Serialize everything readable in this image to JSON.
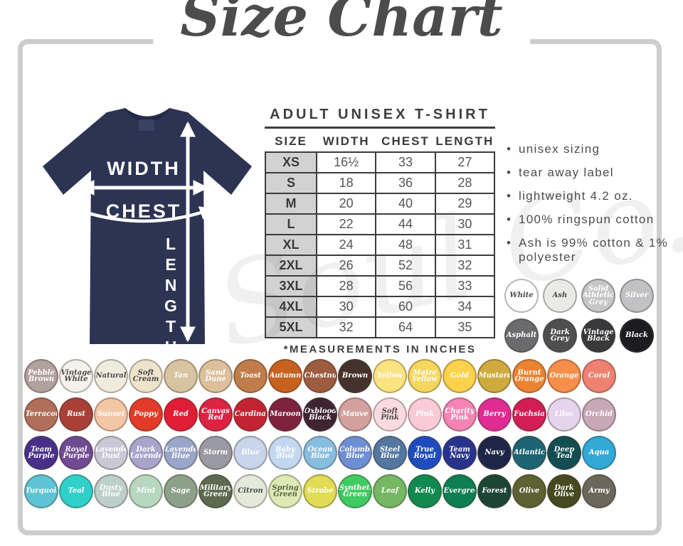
{
  "title": "Size Chart",
  "watermark": "Soul Co.",
  "shirt": {
    "color": "#2d3453",
    "labels": {
      "width": "WIDTH",
      "chest": "CHEST",
      "length": "LENGTH"
    }
  },
  "size_chart": {
    "heading": "ADULT UNISEX T-SHIRT",
    "columns": [
      "SIZE",
      "WIDTH",
      "CHEST",
      "LENGTH"
    ],
    "rows": [
      {
        "size": "XS",
        "width": "16½",
        "chest": "33",
        "length": "27"
      },
      {
        "size": "S",
        "width": "18",
        "chest": "36",
        "length": "28"
      },
      {
        "size": "M",
        "width": "20",
        "chest": "40",
        "length": "29"
      },
      {
        "size": "L",
        "width": "22",
        "chest": "44",
        "length": "30"
      },
      {
        "size": "XL",
        "width": "24",
        "chest": "48",
        "length": "31"
      },
      {
        "size": "2XL",
        "width": "26",
        "chest": "52",
        "length": "32"
      },
      {
        "size": "3XL",
        "width": "28",
        "chest": "56",
        "length": "33"
      },
      {
        "size": "4XL",
        "width": "30",
        "chest": "60",
        "length": "34"
      },
      {
        "size": "5XL",
        "width": "32",
        "chest": "64",
        "length": "35"
      }
    ],
    "footnote": "*MEASUREMENTS IN INCHES"
  },
  "features": [
    "unisex sizing",
    "tear away label",
    "lightweight 4.2 oz.",
    "100% ringspun cotton",
    "Ash is 99% cotton & 1% polyester"
  ],
  "neutral_swatches": [
    {
      "label": "White",
      "color": "#ffffff",
      "text": "#4a4a4a"
    },
    {
      "label": "Ash",
      "color": "#eaeae8",
      "text": "#4a4a4a"
    },
    {
      "label": "Solid Athletic Grey",
      "color": "#c6c6c6",
      "text": "#ffffff"
    },
    {
      "label": "Silver",
      "color": "#c2c2c4",
      "text": "#ffffff"
    },
    {
      "label": "Asphalt",
      "color": "#6b6b6d",
      "text": "#ffffff"
    },
    {
      "label": "Dark Grey",
      "color": "#4f4f51",
      "text": "#ffffff"
    },
    {
      "label": "Vintage Black",
      "color": "#39393b",
      "text": "#ffffff"
    },
    {
      "label": "Black",
      "color": "#1c1c20",
      "text": "#ffffff"
    }
  ],
  "swatch_rows": [
    [
      {
        "label": "Pebble Brown",
        "color": "#b2a19c",
        "text": "#ffffff"
      },
      {
        "label": "Vintage White",
        "color": "#f4f2ec",
        "text": "#4a4a4a"
      },
      {
        "label": "Natural",
        "color": "#f0ebdd",
        "text": "#4a4a4a"
      },
      {
        "label": "Soft Cream",
        "color": "#eee3cb",
        "text": "#4a4a4a"
      },
      {
        "label": "Tan",
        "color": "#d9c4a2",
        "text": "#ffffff"
      },
      {
        "label": "Sand Dune",
        "color": "#dcc09b",
        "text": "#ffffff"
      },
      {
        "label": "Toast",
        "color": "#c07c4a",
        "text": "#ffffff"
      },
      {
        "label": "Autumn",
        "color": "#c8601f",
        "text": "#ffffff"
      },
      {
        "label": "Chestnut",
        "color": "#9d5b40",
        "text": "#ffffff"
      },
      {
        "label": "Brown",
        "color": "#45322d",
        "text": "#ffffff"
      },
      {
        "label": "Yellow",
        "color": "#fbe381",
        "text": "#ffffff"
      },
      {
        "label": "Maize Yellow",
        "color": "#f6d75e",
        "text": "#ffffff"
      },
      {
        "label": "Gold",
        "color": "#fcd14b",
        "text": "#ffffff"
      },
      {
        "label": "Mustard",
        "color": "#cfab3d",
        "text": "#ffffff"
      },
      {
        "label": "Burnt Orange",
        "color": "#ed8330",
        "text": "#ffffff"
      },
      {
        "label": "Orange",
        "color": "#f78e49",
        "text": "#ffffff"
      },
      {
        "label": "Coral",
        "color": "#ee8172",
        "text": "#ffffff"
      }
    ],
    [
      {
        "label": "Terracotta",
        "color": "#b06f5a",
        "text": "#ffffff"
      },
      {
        "label": "Rust",
        "color": "#a84038",
        "text": "#ffffff"
      },
      {
        "label": "Sunset",
        "color": "#f3c6a5",
        "text": "#ffffff"
      },
      {
        "label": "Poppy",
        "color": "#e23b28",
        "text": "#ffffff"
      },
      {
        "label": "Red",
        "color": "#e01d35",
        "text": "#ffffff"
      },
      {
        "label": "Canvas Red",
        "color": "#dc2342",
        "text": "#ffffff"
      },
      {
        "label": "Cardinal",
        "color": "#c22333",
        "text": "#ffffff"
      },
      {
        "label": "Maroon",
        "color": "#7e2240",
        "text": "#ffffff"
      },
      {
        "label": "Oxblood Black",
        "color": "#3e2531",
        "text": "#ffffff"
      },
      {
        "label": "Mauve",
        "color": "#d4a09e",
        "text": "#ffffff"
      },
      {
        "label": "Soft Pink",
        "color": "#fbdbe1",
        "text": "#4a4a4a"
      },
      {
        "label": "Pink",
        "color": "#f9cbd8",
        "text": "#ffffff"
      },
      {
        "label": "Charity Pink",
        "color": "#f584b4",
        "text": "#ffffff"
      },
      {
        "label": "Berry",
        "color": "#e02c92",
        "text": "#ffffff"
      },
      {
        "label": "Fuchsia",
        "color": "#d31d55",
        "text": "#ffffff"
      },
      {
        "label": "Lilac",
        "color": "#e5d4ec",
        "text": "#ffffff"
      },
      {
        "label": "Orchid",
        "color": "#c8a8b7",
        "text": "#ffffff"
      }
    ],
    [
      {
        "label": "Team Purple",
        "color": "#483089",
        "text": "#ffffff"
      },
      {
        "label": "Royal Purple",
        "color": "#6f4b92",
        "text": "#ffffff"
      },
      {
        "label": "Lavender Dust",
        "color": "#cbc8d6",
        "text": "#ffffff"
      },
      {
        "label": "Dark Lavender",
        "color": "#a8a4cb",
        "text": "#ffffff"
      },
      {
        "label": "Lavender Blue",
        "color": "#9aa6c9",
        "text": "#ffffff"
      },
      {
        "label": "Storm",
        "color": "#9a9aa4",
        "text": "#ffffff"
      },
      {
        "label": "Blue",
        "color": "#c8d5ea",
        "text": "#ffffff"
      },
      {
        "label": "Baby Blue",
        "color": "#c3d8f0",
        "text": "#ffffff"
      },
      {
        "label": "Ocean Blue",
        "color": "#87bedf",
        "text": "#ffffff"
      },
      {
        "label": "Columbia Blue",
        "color": "#6e8ed3",
        "text": "#ffffff"
      },
      {
        "label": "Steel Blue",
        "color": "#53779f",
        "text": "#ffffff"
      },
      {
        "label": "True Royal",
        "color": "#1e4cbe",
        "text": "#ffffff"
      },
      {
        "label": "Team Navy",
        "color": "#28348c",
        "text": "#ffffff"
      },
      {
        "label": "Navy",
        "color": "#1e2647",
        "text": "#ffffff"
      },
      {
        "label": "Atlantic",
        "color": "#1b6471",
        "text": "#ffffff"
      },
      {
        "label": "Deep Teal",
        "color": "#124d52",
        "text": "#ffffff"
      },
      {
        "label": "Aqua",
        "color": "#30a9d6",
        "text": "#ffffff"
      }
    ],
    [
      {
        "label": "Turquoise",
        "color": "#5ec3d5",
        "text": "#ffffff"
      },
      {
        "label": "Teal",
        "color": "#2fd1ca",
        "text": "#ffffff"
      },
      {
        "label": "Dusty Blue",
        "color": "#bdcfca",
        "text": "#ffffff"
      },
      {
        "label": "Mint",
        "color": "#b7d8bf",
        "text": "#ffffff"
      },
      {
        "label": "Sage",
        "color": "#8da089",
        "text": "#ffffff"
      },
      {
        "label": "Military Green",
        "color": "#5d6a50",
        "text": "#ffffff"
      },
      {
        "label": "Citron",
        "color": "#e4e9da",
        "text": "#4a4a4a"
      },
      {
        "label": "Spring Green",
        "color": "#dfe9b5",
        "text": "#5a6140"
      },
      {
        "label": "Strobe",
        "color": "#e0dc55",
        "text": "#ffffff"
      },
      {
        "label": "Synthetic Green",
        "color": "#3fcb60",
        "text": "#ffffff"
      },
      {
        "label": "Leaf",
        "color": "#76b763",
        "text": "#ffffff"
      },
      {
        "label": "Kelly",
        "color": "#12894e",
        "text": "#ffffff"
      },
      {
        "label": "Evergreen",
        "color": "#0e7e53",
        "text": "#ffffff"
      },
      {
        "label": "Forest",
        "color": "#1c4536",
        "text": "#ffffff"
      },
      {
        "label": "Olive",
        "color": "#5d6233",
        "text": "#ffffff"
      },
      {
        "label": "Dark Olive",
        "color": "#454a20",
        "text": "#ffffff"
      },
      {
        "label": "Army",
        "color": "#6b675a",
        "text": "#ffffff"
      }
    ]
  ]
}
